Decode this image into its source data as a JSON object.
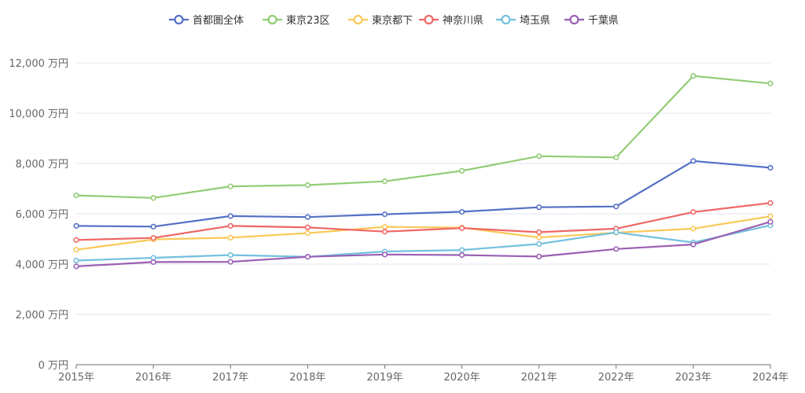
{
  "chart_data": {
    "type": "line",
    "title": "",
    "xlabel": "",
    "ylabel": "",
    "categories": [
      "2015年",
      "2016年",
      "2017年",
      "2018年",
      "2019年",
      "2020年",
      "2021年",
      "2022年",
      "2023年",
      "2024年"
    ],
    "yticks": [
      "0 万円",
      "2,000 万円",
      "4,000 万円",
      "6,000 万円",
      "8,000 万円",
      "10,000 万円",
      "12,000 万円"
    ],
    "ylim": [
      0,
      12000
    ],
    "grid": true,
    "legend_position": "top",
    "series": [
      {
        "name": "首都圏全体",
        "color": "#5470c6",
        "values": [
          5520,
          5490,
          5910,
          5870,
          5980,
          6080,
          6260,
          6290,
          8100,
          7830
        ]
      },
      {
        "name": "東京23区",
        "color": "#91cc75",
        "values": [
          6730,
          6630,
          7090,
          7140,
          7290,
          7710,
          8290,
          8240,
          11480,
          11180
        ]
      },
      {
        "name": "東京都下",
        "color": "#fac858",
        "values": [
          4570,
          4980,
          5050,
          5230,
          5480,
          5450,
          5060,
          5250,
          5410,
          5900
        ]
      },
      {
        "name": "神奈川県",
        "color": "#ee6666",
        "values": [
          4960,
          5040,
          5520,
          5460,
          5290,
          5430,
          5270,
          5410,
          6070,
          6430
        ]
      },
      {
        "name": "埼玉県",
        "color": "#73c0de",
        "values": [
          4140,
          4250,
          4360,
          4290,
          4500,
          4560,
          4800,
          5260,
          4860,
          5540
        ]
      },
      {
        "name": "千葉県",
        "color": "#9a60b4",
        "values": [
          3910,
          4080,
          4090,
          4290,
          4380,
          4360,
          4300,
          4600,
          4780,
          5680
        ]
      }
    ]
  }
}
